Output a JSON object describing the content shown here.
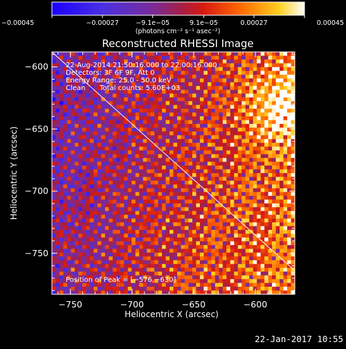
{
  "chart_data": {
    "type": "heatmap",
    "title": "Reconstructed RHESSI Image",
    "xlabel": "Heliocentric X (arcsec)",
    "ylabel": "Heliocentric Y (arcsec)",
    "xlim": [
      -765,
      -568
    ],
    "ylim": [
      -783,
      -588
    ],
    "x_ticks": [
      -750,
      -700,
      -650,
      -600
    ],
    "y_ticks": [
      -600,
      -650,
      -700,
      -750
    ],
    "x_tick_labels": [
      "−750",
      "−700",
      "−650",
      "−600"
    ],
    "y_tick_labels": [
      "−600",
      "−650",
      "−700",
      "−750"
    ],
    "colorbar": {
      "range": [
        -0.00045,
        0.00045
      ],
      "ticks": [
        -0.00045,
        -0.00027,
        -9.1e-05,
        9.1e-05,
        0.00027,
        0.00045
      ],
      "tick_labels": [
        "−0.00045",
        "−0.00027",
        "−9.1e−05",
        "9.1e−05",
        "0.00027",
        "0.00045"
      ],
      "units": "(photons cm⁻² s⁻¹ asec⁻²)"
    },
    "annotations": {
      "time_range": "22-Aug-2014 21:50:16.000 to 22:00:16.000",
      "detectors": "Detectors: 3F 6F 9F, Att 0",
      "energy_range": "Energy Range: 25.0 - 50.0 keV",
      "clean": "Clean",
      "total_counts": "Total counts: 5.60E+03",
      "peak_position": "Position of Peak = [−576,−630]"
    },
    "peak": [
      -576,
      -630
    ],
    "limb_line": [
      [
        -765,
        -588
      ],
      [
        -568,
        -764
      ]
    ],
    "grid": false,
    "colormap": "blue-purple-red-yellow-white"
  },
  "footer": {
    "timestamp": "22-Jan-2017 10:55"
  }
}
